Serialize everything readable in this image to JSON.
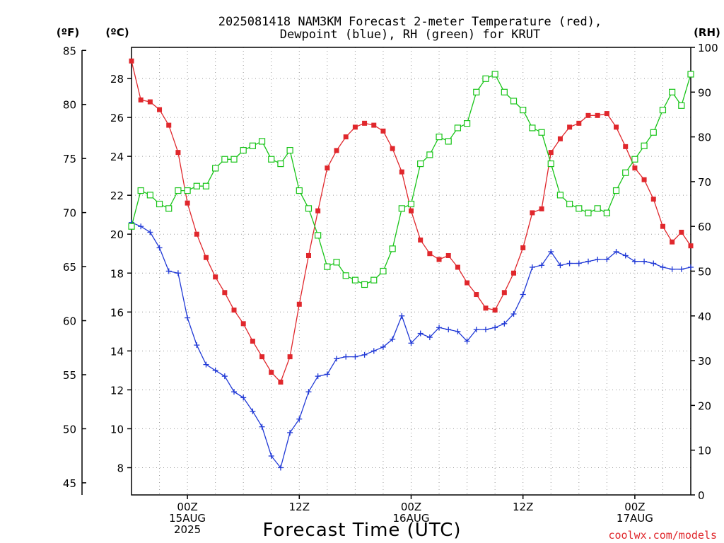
{
  "chart_data": {
    "type": "line",
    "title_line1": "2025081418 NAM3KM Forecast 2-meter Temperature (red),",
    "title_line2": "Dewpoint (blue), RH (green) for KRUT",
    "xlabel": "Forecast Time (UTC)",
    "credit": "coolwx.com/models",
    "left_axis_f": {
      "unit": "(ºF)",
      "ticks": [
        45,
        50,
        55,
        60,
        65,
        70,
        75,
        80,
        85
      ]
    },
    "left_axis_c": {
      "unit": "(ºC)",
      "ticks": [
        8,
        10,
        12,
        14,
        16,
        18,
        20,
        22,
        24,
        26,
        28
      ],
      "range": [
        6.6,
        29.6
      ]
    },
    "right_axis_rh": {
      "unit": "(RH)",
      "ticks": [
        0,
        10,
        20,
        30,
        40,
        50,
        60,
        70,
        80,
        90,
        100
      ],
      "range": [
        0,
        100
      ]
    },
    "x_range_hours": [
      0,
      60
    ],
    "x_ticks": [
      {
        "hour": 6,
        "lines": [
          "00Z",
          "15AUG",
          "2025"
        ]
      },
      {
        "hour": 18,
        "lines": [
          "12Z"
        ]
      },
      {
        "hour": 30,
        "lines": [
          "00Z",
          "16AUG"
        ]
      },
      {
        "hour": 42,
        "lines": [
          "12Z"
        ]
      },
      {
        "hour": 54,
        "lines": [
          "00Z",
          "17AUG"
        ]
      }
    ],
    "x_hours": [
      0,
      1,
      2,
      3,
      4,
      5,
      6,
      7,
      8,
      9,
      10,
      11,
      12,
      13,
      14,
      15,
      16,
      17,
      18,
      19,
      20,
      21,
      22,
      23,
      24,
      25,
      26,
      27,
      28,
      29,
      30,
      31,
      32,
      33,
      34,
      35,
      36,
      37,
      38,
      39,
      40,
      41,
      42,
      43,
      44,
      45,
      46,
      47,
      48,
      49,
      50,
      51,
      52,
      53,
      54,
      55,
      56,
      57,
      58,
      59,
      60
    ],
    "series": [
      {
        "name": "2-meter Temperature",
        "color": "#e0272c",
        "axis": "celsius",
        "marker": "filled-square",
        "values": [
          28.9,
          26.9,
          26.8,
          26.4,
          25.6,
          24.2,
          21.6,
          20.0,
          18.8,
          17.8,
          17.0,
          16.1,
          15.4,
          14.5,
          13.7,
          12.9,
          12.4,
          13.7,
          16.4,
          18.9,
          21.2,
          23.4,
          24.3,
          25.0,
          25.5,
          25.7,
          25.6,
          25.3,
          24.4,
          23.2,
          21.2,
          19.7,
          19.0,
          18.7,
          18.9,
          18.3,
          17.5,
          16.9,
          16.2,
          16.1,
          17.0,
          18.0,
          19.3,
          21.1,
          21.3,
          24.2,
          24.9,
          25.5,
          25.7,
          26.1,
          26.1,
          26.2,
          25.5,
          24.5,
          23.4,
          22.8,
          21.8,
          20.4,
          19.6,
          20.1,
          19.4
        ]
      },
      {
        "name": "Dewpoint",
        "color": "#2039d6",
        "axis": "celsius",
        "marker": "plus",
        "values": [
          20.6,
          20.4,
          20.1,
          19.3,
          18.1,
          18.0,
          15.7,
          14.3,
          13.3,
          13.0,
          12.7,
          11.9,
          11.6,
          10.9,
          10.1,
          8.6,
          8.0,
          9.8,
          10.5,
          11.9,
          12.7,
          12.8,
          13.6,
          13.7,
          13.7,
          13.8,
          14.0,
          14.2,
          14.6,
          15.8,
          14.4,
          14.9,
          14.7,
          15.2,
          15.1,
          15.0,
          14.5,
          15.1,
          15.1,
          15.2,
          15.4,
          15.9,
          16.9,
          18.3,
          18.4,
          19.1,
          18.4,
          18.5,
          18.5,
          18.6,
          18.7,
          18.7,
          19.1,
          18.9,
          18.6,
          18.6,
          18.5,
          18.3,
          18.2,
          18.2,
          18.3
        ]
      },
      {
        "name": "RH",
        "color": "#18c418",
        "axis": "rh",
        "marker": "open-square",
        "values": [
          60,
          68,
          67,
          65,
          64,
          68,
          68,
          69,
          69,
          73,
          75,
          75,
          77,
          78,
          79,
          75,
          74,
          77,
          68,
          64,
          58,
          51,
          52,
          49,
          48,
          47,
          48,
          50,
          55,
          64,
          65,
          74,
          76,
          80,
          79,
          82,
          83,
          90,
          93,
          94,
          90,
          88,
          86,
          82,
          81,
          74,
          67,
          65,
          64,
          63,
          64,
          63,
          68,
          72,
          75,
          78,
          81,
          86,
          90,
          87,
          94
        ]
      }
    ]
  }
}
